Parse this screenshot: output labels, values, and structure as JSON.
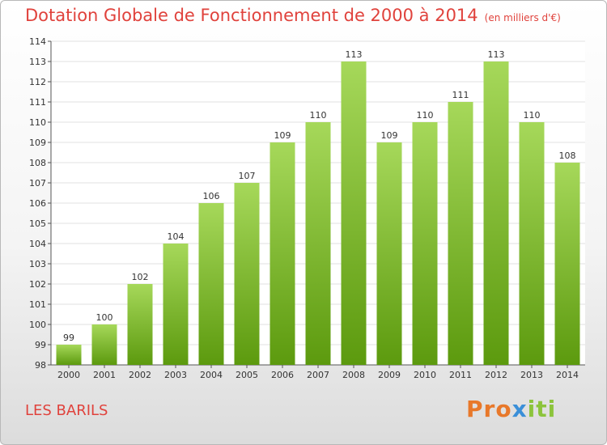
{
  "title": "Dotation Globale de Fonctionnement de 2000 à 2014",
  "unit_note": "(en milliers d'€)",
  "commune": "LES BARILS",
  "logo": {
    "part1": "Pro",
    "part2": "x",
    "part3": "iti"
  },
  "colors": {
    "bar_light": "#9dd24f",
    "bar_dark": "#5f9e10",
    "title": "#e0423c"
  },
  "chart_data": {
    "type": "bar",
    "title": "Dotation Globale de Fonctionnement de 2000 à 2014",
    "categories": [
      "2000",
      "2001",
      "2002",
      "2003",
      "2004",
      "2005",
      "2006",
      "2007",
      "2008",
      "2009",
      "2010",
      "2011",
      "2012",
      "2013",
      "2014"
    ],
    "values": [
      99,
      100,
      102,
      104,
      106,
      107,
      109,
      110,
      113,
      109,
      110,
      111,
      113,
      110,
      108
    ],
    "ylim": [
      98,
      114
    ],
    "yticks": [
      98,
      99,
      100,
      101,
      102,
      103,
      104,
      105,
      106,
      107,
      108,
      109,
      110,
      111,
      112,
      113,
      114
    ],
    "grid": true,
    "legend": "none"
  }
}
